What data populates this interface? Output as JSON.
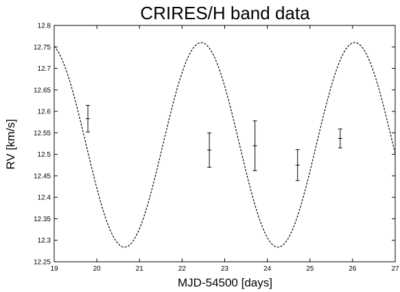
{
  "chart_data": {
    "type": "scatter",
    "title": "CRIRES/H band data",
    "xlabel": "MJD-54500 [days]",
    "ylabel": "RV [km/s]",
    "xlim": [
      19,
      27
    ],
    "ylim": [
      12.25,
      12.8
    ],
    "xticks": [
      "19",
      "20",
      "21",
      "22",
      "23",
      "24",
      "25",
      "26",
      "27"
    ],
    "yticks": [
      "12.25",
      "12.3",
      "12.35",
      "12.4",
      "12.45",
      "12.5",
      "12.55",
      "12.6",
      "12.65",
      "12.7",
      "12.75",
      "12.8"
    ],
    "grid": false,
    "series": [
      {
        "type": "errorbar",
        "points": [
          {
            "x": 19.79,
            "y": 12.583,
            "err": 0.031
          },
          {
            "x": 22.64,
            "y": 12.51,
            "err": 0.04
          },
          {
            "x": 23.71,
            "y": 12.52,
            "err": 0.058
          },
          {
            "x": 24.71,
            "y": 12.475,
            "err": 0.036
          },
          {
            "x": 25.71,
            "y": 12.537,
            "err": 0.022
          }
        ]
      },
      {
        "type": "line",
        "style": "dashed",
        "model": {
          "offset": 12.522,
          "amplitude": 0.238,
          "period": 3.6,
          "max_at": 22.45
        },
        "x_range": [
          19,
          27
        ]
      }
    ]
  }
}
